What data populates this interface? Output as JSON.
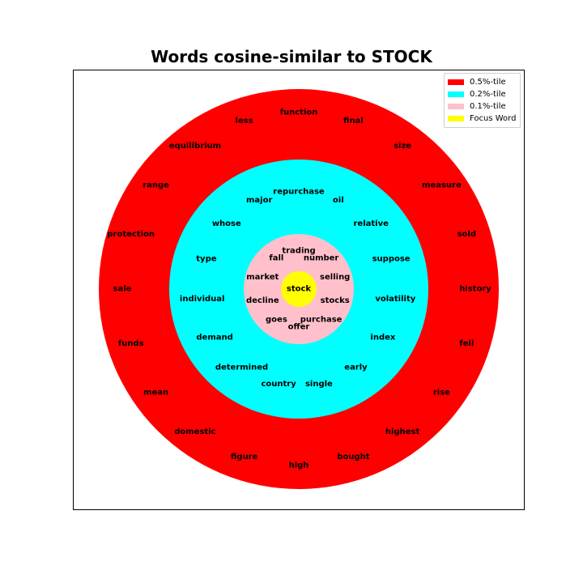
{
  "chart_data": {
    "type": "concentric-rings",
    "title": "Words cosine-similar to STOCK",
    "legend": {
      "placement": "top-right",
      "entries": [
        {
          "label": "0.5%-tile",
          "color": "#ff0000"
        },
        {
          "label": "0.2%-tile",
          "color": "#00ffff"
        },
        {
          "label": "0.1%-tile",
          "color": "#ffc0cb"
        },
        {
          "label": "Focus Word",
          "color": "#ffff00"
        }
      ]
    },
    "focus_word": "stock",
    "rings": [
      {
        "legend": "0.5%-tile",
        "color": "#ff0000",
        "words": [
          "function",
          "final",
          "size",
          "measure",
          "sold",
          "history",
          "fell",
          "rise",
          "highest",
          "bought",
          "high",
          "figure",
          "domestic",
          "mean",
          "funds",
          "sale",
          "protection",
          "range",
          "equilibrium",
          "less"
        ]
      },
      {
        "legend": "0.2%-tile",
        "color": "#00ffff",
        "words": [
          "repurchase",
          "oil",
          "relative",
          "suppose",
          "volatility",
          "index",
          "early",
          "single",
          "country",
          "determined",
          "demand",
          "individual",
          "type",
          "whose",
          "major"
        ]
      },
      {
        "legend": "0.1%-tile",
        "color": "#ffc0cb",
        "words": [
          "trading",
          "number",
          "selling",
          "stocks",
          "purchase",
          "offer",
          "goes",
          "decline",
          "market",
          "fall"
        ]
      }
    ]
  }
}
